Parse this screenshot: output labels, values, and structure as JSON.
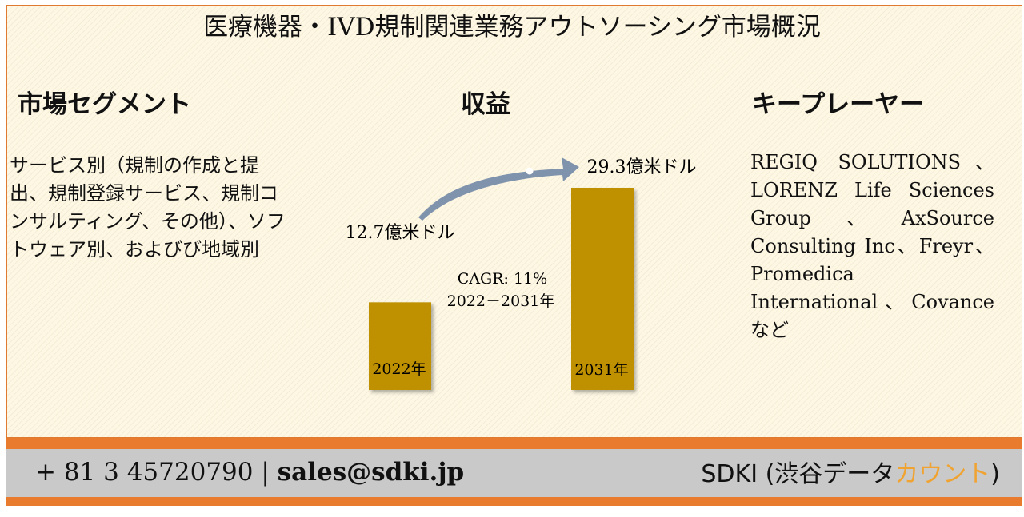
{
  "title": "医療機器・IVD規制関連業務アウトソーシング市場概況",
  "segments": {
    "heading": "市場セグメント",
    "text": "サービス別（規制の作成と提出、規制登録サービス、規制コンサルティング、その他）、ソフトウェア別、およびび地域別"
  },
  "revenue": {
    "heading": "収益"
  },
  "players": {
    "heading": "キープレーヤー",
    "text": "REGIQ SOLUTIONS、LORENZ Life Sciences Group、AxSource Consulting Inc、Freyr、Promedica International、Covanceなど"
  },
  "chart_data": {
    "type": "bar",
    "categories": [
      "2022年",
      "2031年"
    ],
    "values": [
      12.7,
      29.3
    ],
    "value_labels": [
      "12.7億米ドル",
      "29.3億米ドル"
    ],
    "cagr_label": "CAGR: 11%",
    "period_label": "2022－2031年",
    "bar_color": "#bf9000",
    "arrow_color": "#7f93ad"
  },
  "footer": {
    "phone": "+ 81 3 45720790",
    "separator": "|",
    "email": "sales@sdki.jp",
    "brand_main": "SDKI (渋谷データ",
    "brand_accent": "カウント",
    "brand_close": ")",
    "accent_color": "#f0a330",
    "bar_color": "#e97b2e"
  }
}
